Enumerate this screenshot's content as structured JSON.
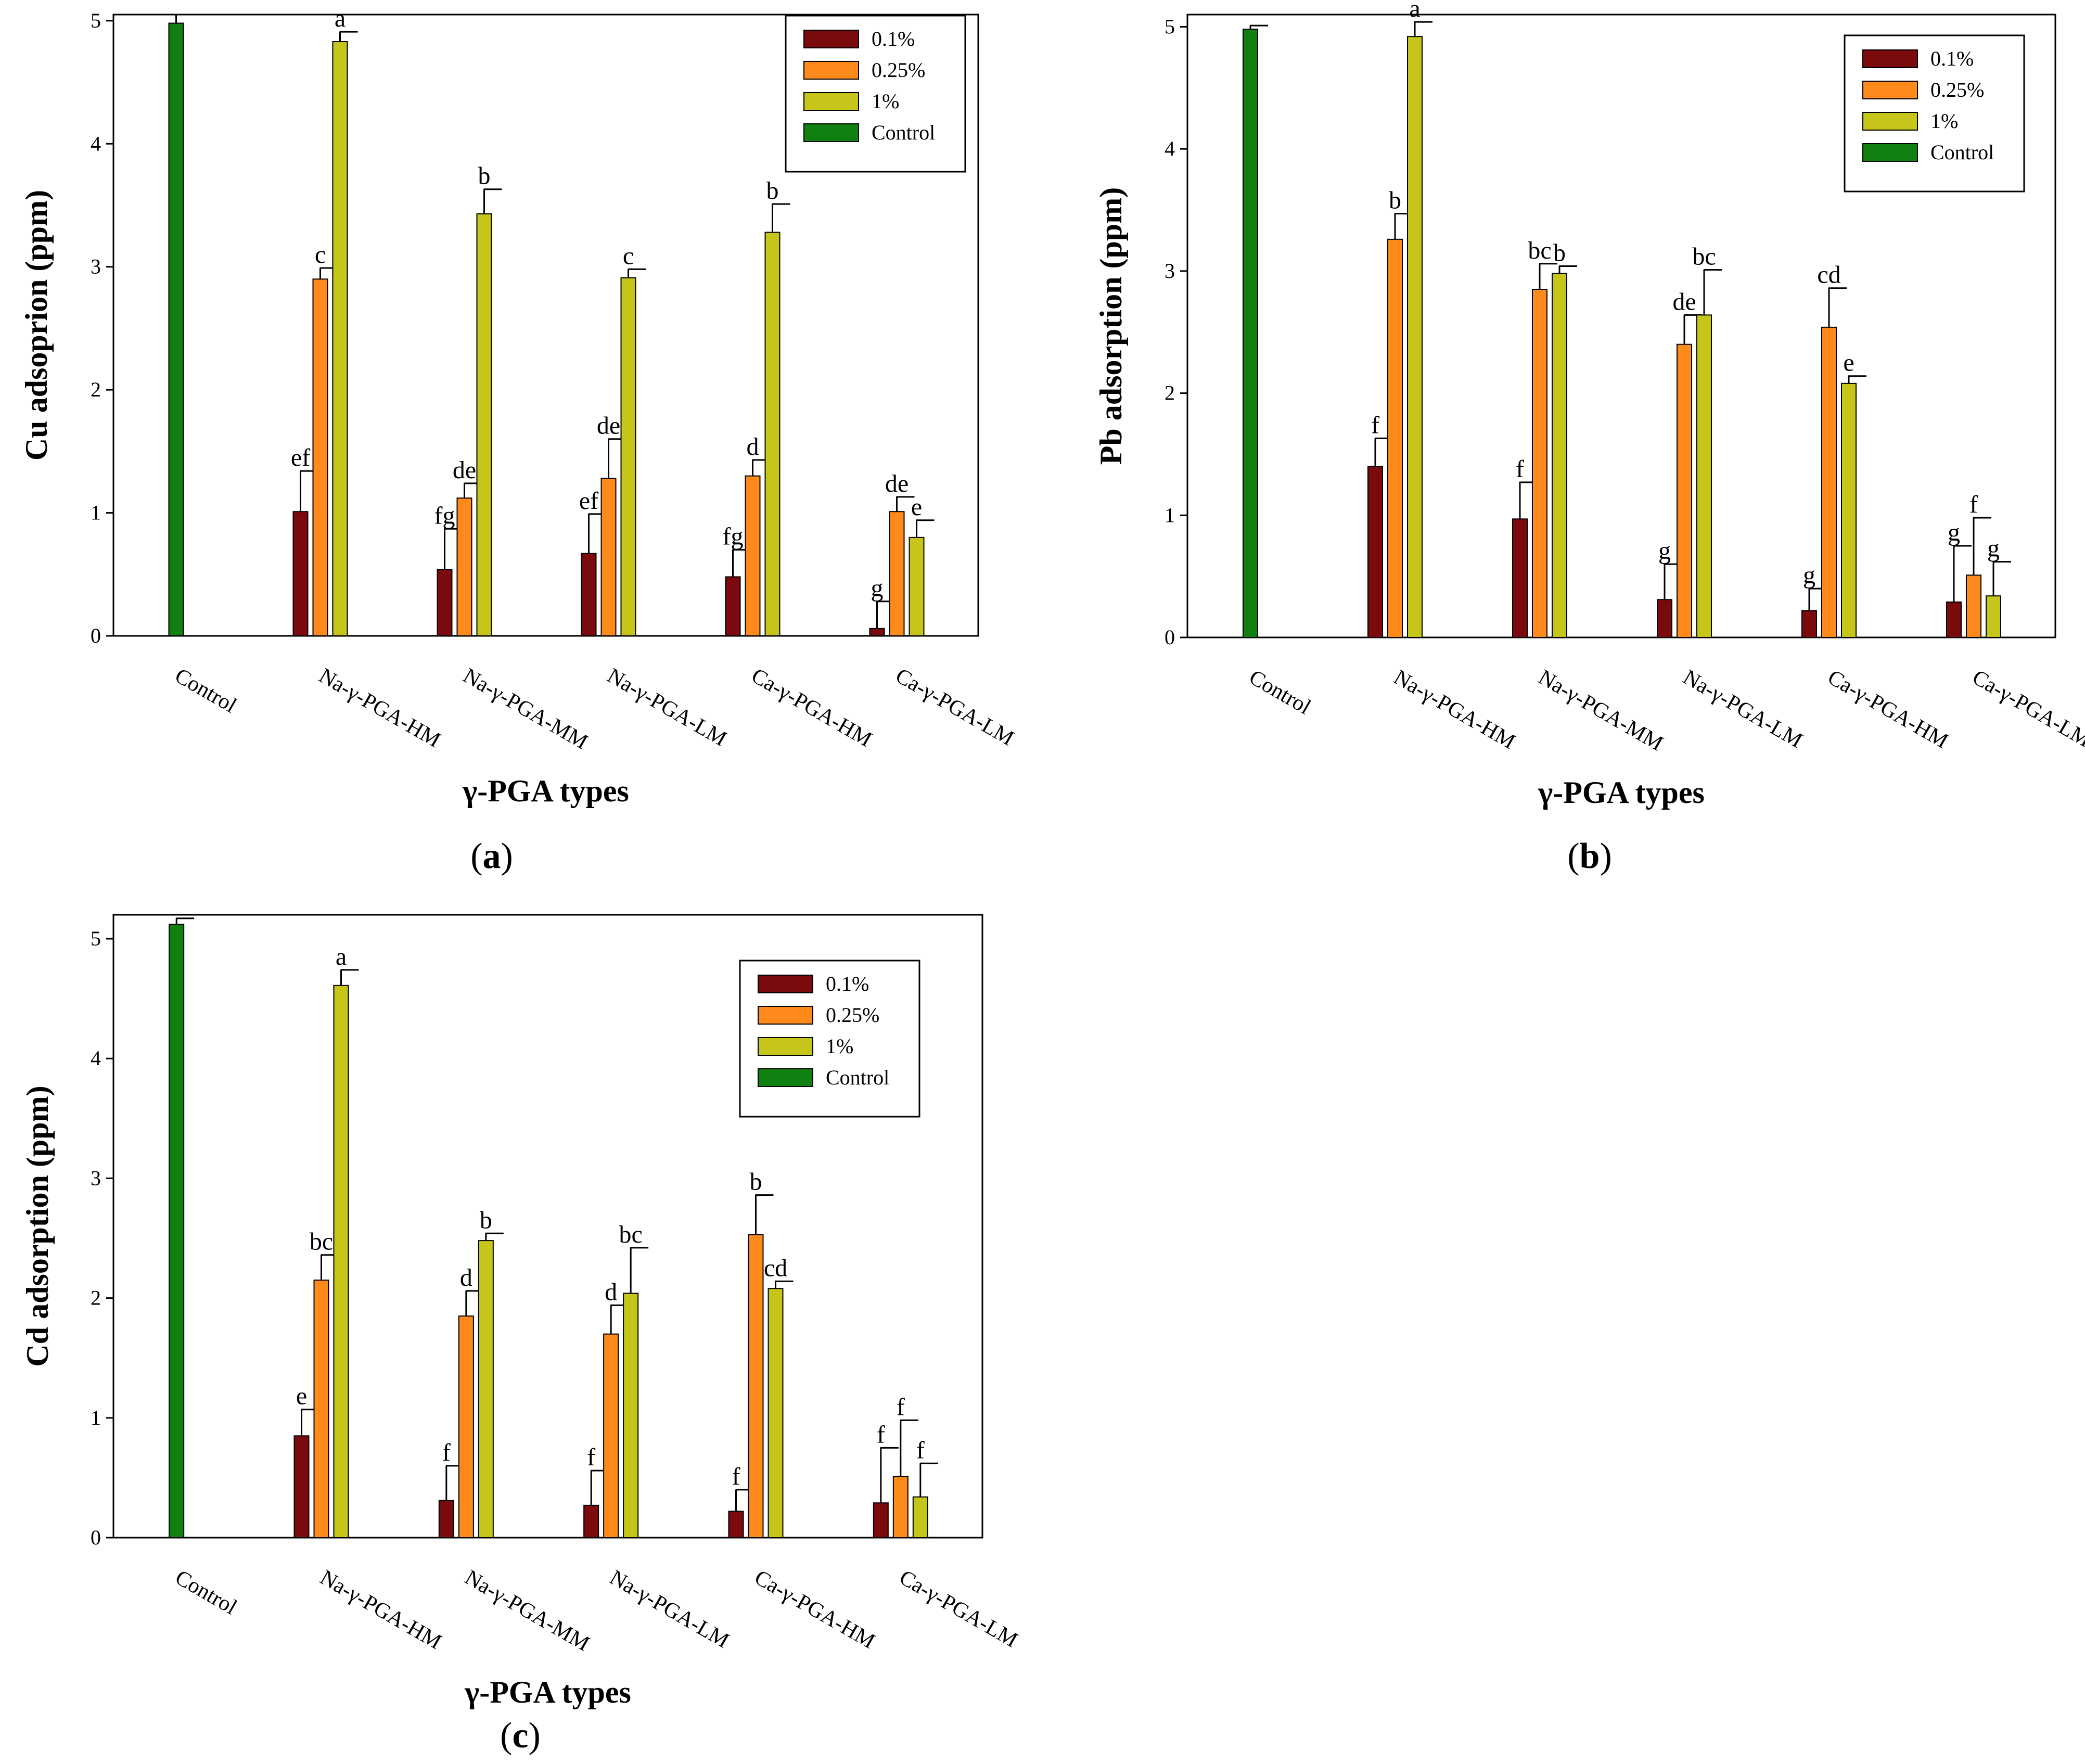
{
  "colors": {
    "0.1%": "#7a0a0c",
    "0.25%": "#ff8a1c",
    "1%": "#c5c51a",
    "Control": "#108010"
  },
  "legend": [
    "0.1%",
    "0.25%",
    "1%",
    "Control"
  ],
  "chart_data": [
    {
      "id": "a",
      "type": "bar",
      "caption_open": "(",
      "caption_letter": "a",
      "caption_close": ")",
      "ylabel": "Cu adsoprion (ppm)",
      "xlabel": "γ-PGA types",
      "ylim": [
        0,
        5.05
      ],
      "yticks": [
        "0",
        "1",
        "2",
        "3",
        "4",
        "5"
      ],
      "categories": [
        "Control",
        "Na-γ-PGA-HM",
        "Na-γ-PGA-MM",
        "Na-γ-PGA-LM",
        "Ca-γ-PGA-HM",
        "Ca-γ-PGA-LM"
      ],
      "control": {
        "value": 4.98,
        "err": 0.07
      },
      "series": [
        {
          "name": "0.1%",
          "values": [
            null,
            1.01,
            0.54,
            0.67,
            0.48,
            0.06
          ],
          "err": [
            null,
            0.33,
            0.33,
            0.32,
            0.22,
            0.22
          ],
          "labels": [
            null,
            "ef",
            "fg",
            "ef",
            "fg",
            "g"
          ]
        },
        {
          "name": "0.25%",
          "values": [
            null,
            2.9,
            1.12,
            1.28,
            1.3,
            1.01
          ],
          "err": [
            null,
            0.09,
            0.12,
            0.32,
            0.13,
            0.12
          ],
          "labels": [
            null,
            "c",
            "de",
            "de",
            "d",
            "de"
          ]
        },
        {
          "name": "1%",
          "values": [
            null,
            4.83,
            3.43,
            2.91,
            3.28,
            0.8
          ],
          "err": [
            null,
            0.08,
            0.2,
            0.07,
            0.23,
            0.14
          ],
          "labels": [
            null,
            "a",
            "b",
            "c",
            "b",
            "e"
          ]
        }
      ]
    },
    {
      "id": "b",
      "type": "bar",
      "caption_open": "(",
      "caption_letter": "b",
      "caption_close": ")",
      "ylabel": "Pb adsorption (ppm)",
      "xlabel": "γ-PGA types",
      "ylim": [
        0,
        5.1
      ],
      "yticks": [
        "0",
        "1",
        "2",
        "3",
        "4",
        "5"
      ],
      "categories": [
        "Control",
        "Na-γ-PGA-HM",
        "Na-γ-PGA-MM",
        "Na-γ-PGA-LM",
        "Ca-γ-PGA-HM",
        "Ca-γ-PGA-LM"
      ],
      "control": {
        "value": 4.98,
        "err": 0.03
      },
      "series": [
        {
          "name": "0.1%",
          "values": [
            null,
            1.4,
            0.97,
            0.31,
            0.22,
            0.29
          ],
          "err": [
            null,
            0.23,
            0.3,
            0.29,
            0.18,
            0.46
          ],
          "labels": [
            null,
            "f",
            "f",
            "g",
            "g",
            "g"
          ]
        },
        {
          "name": "0.25%",
          "values": [
            null,
            3.26,
            2.85,
            2.4,
            2.54,
            0.51
          ],
          "err": [
            null,
            0.21,
            0.21,
            0.24,
            0.32,
            0.47
          ],
          "labels": [
            null,
            "b",
            "bc",
            "de",
            "cd",
            "f"
          ]
        },
        {
          "name": "1%",
          "values": [
            null,
            4.92,
            2.98,
            2.64,
            2.08,
            0.34
          ],
          "err": [
            null,
            0.12,
            0.06,
            0.37,
            0.06,
            0.28
          ],
          "labels": [
            null,
            "a",
            "b",
            "bc",
            "e",
            "g"
          ]
        }
      ]
    },
    {
      "id": "c",
      "type": "bar",
      "caption_open": "(",
      "caption_letter": "c",
      "caption_close": ")",
      "ylabel": "Cd adsorption (ppm)",
      "xlabel": "γ-PGA types",
      "ylim": [
        0,
        5.2
      ],
      "yticks": [
        "0",
        "1",
        "2",
        "3",
        "4",
        "5"
      ],
      "categories": [
        "Control",
        "Na-γ-PGA-HM",
        "Na-γ-PGA-MM",
        "Na-γ-PGA-LM",
        "Ca-γ-PGA-HM",
        "Ca-γ-PGA-LM"
      ],
      "control": {
        "value": 5.12,
        "err": 0.05
      },
      "series": [
        {
          "name": "0.1%",
          "values": [
            null,
            0.85,
            0.31,
            0.27,
            0.22,
            0.29
          ],
          "err": [
            null,
            0.22,
            0.29,
            0.29,
            0.18,
            0.46
          ],
          "labels": [
            null,
            "e",
            "f",
            "f",
            "f",
            "f"
          ]
        },
        {
          "name": "0.25%",
          "values": [
            null,
            2.15,
            1.85,
            1.7,
            2.53,
            0.51
          ],
          "err": [
            null,
            0.21,
            0.21,
            0.24,
            0.33,
            0.47
          ],
          "labels": [
            null,
            "bc",
            "d",
            "d",
            "b",
            "f"
          ]
        },
        {
          "name": "1%",
          "values": [
            null,
            4.61,
            2.48,
            2.04,
            2.08,
            0.34
          ],
          "err": [
            null,
            0.13,
            0.06,
            0.38,
            0.06,
            0.28
          ],
          "labels": [
            null,
            "a",
            "b",
            "bc",
            "cd",
            "f"
          ]
        }
      ]
    }
  ]
}
